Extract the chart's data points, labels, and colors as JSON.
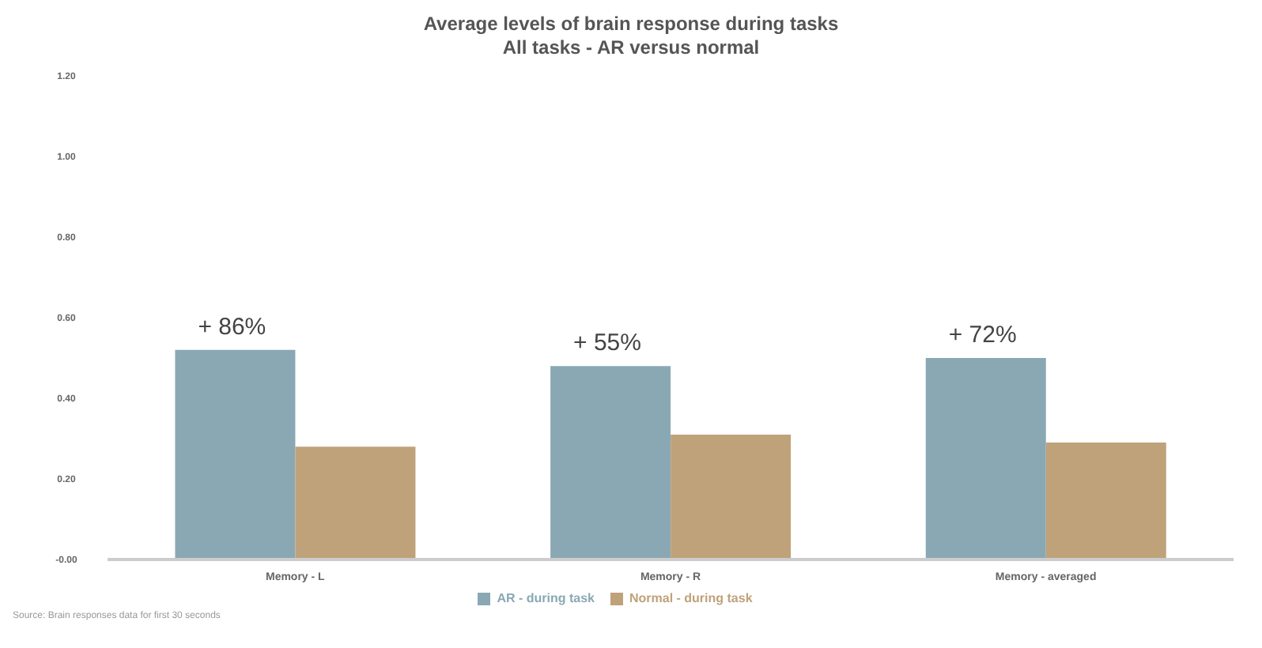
{
  "chart_data": {
    "type": "bar",
    "title": "Average levels of brain response during tasks",
    "subtitle": "All tasks - AR versus normal",
    "categories": [
      "Memory - L",
      "Memory - R",
      "Memory - averaged"
    ],
    "series": [
      {
        "name": "AR - during task",
        "color": "#8aa8b4",
        "values": [
          0.52,
          0.48,
          0.5
        ]
      },
      {
        "name": "Normal - during task",
        "color": "#bfa27a",
        "values": [
          0.28,
          0.31,
          0.29
        ]
      }
    ],
    "ylim": [
      0,
      1.2
    ],
    "yticks": [
      {
        "value": 0,
        "label": "-0.00"
      },
      {
        "value": 0.2,
        "label": "0.20"
      },
      {
        "value": 0.4,
        "label": "0.40"
      },
      {
        "value": 0.6,
        "label": "0.60"
      },
      {
        "value": 0.8,
        "label": "0.80"
      },
      {
        "value": 1.0,
        "label": "1.00"
      },
      {
        "value": 1.2,
        "label": "1.20"
      }
    ],
    "grid": false,
    "legend": "bottom",
    "annotations": [
      {
        "text": "+ 86%",
        "x": "Memory - L",
        "y": 0.52
      },
      {
        "text": "+ 55%",
        "x": "Memory - R",
        "y": 0.48
      },
      {
        "text": "+ 72%",
        "x": "Memory - averaged",
        "y": 0.5
      },
      "Source: Brain responses data for first 30 seconds"
    ]
  }
}
